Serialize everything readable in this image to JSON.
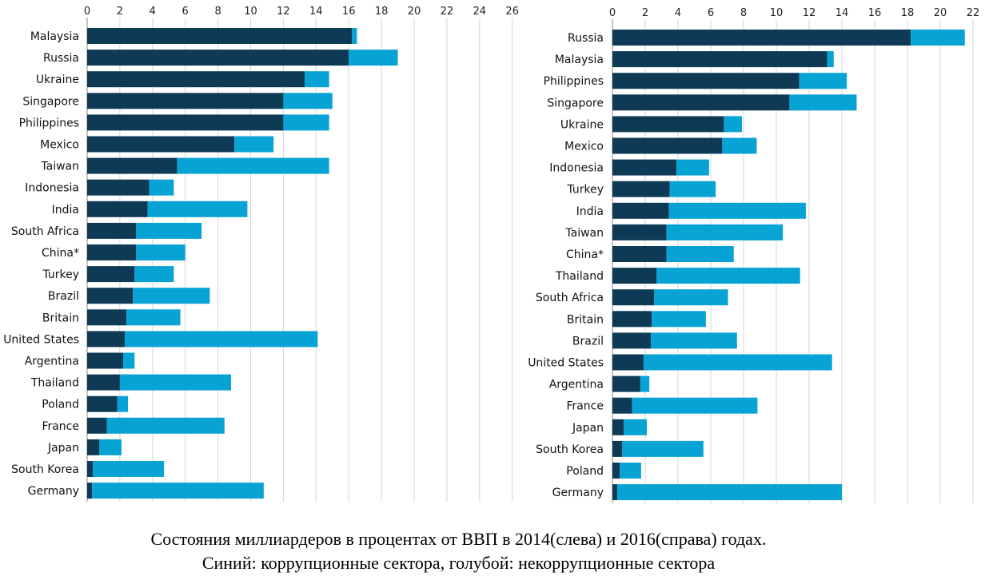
{
  "chart_data": [
    {
      "type": "bar",
      "orientation": "horizontal",
      "stacked": true,
      "title": "",
      "xlim": [
        0,
        26
      ],
      "xticks": [
        0,
        2,
        4,
        6,
        8,
        10,
        12,
        14,
        16,
        18,
        20,
        22,
        24,
        26
      ],
      "categories": [
        "Malaysia",
        "Russia",
        "Ukraine",
        "Singapore",
        "Philippines",
        "Mexico",
        "Taiwan",
        "Indonesia",
        "India",
        "South Africa",
        "China*",
        "Turkey",
        "Brazil",
        "Britain",
        "United States",
        "Argentina",
        "Thailand",
        "Poland",
        "France",
        "Japan",
        "South Korea",
        "Germany"
      ],
      "series": [
        {
          "values": [
            16.2,
            16.0,
            13.3,
            12.0,
            12.0,
            9.0,
            5.5,
            3.8,
            3.7,
            3.0,
            3.0,
            2.9,
            2.8,
            2.4,
            2.3,
            2.2,
            2.0,
            1.85,
            1.2,
            0.75,
            0.35,
            0.3
          ]
        },
        {
          "values": [
            0.3,
            3.0,
            1.5,
            3.0,
            2.8,
            2.4,
            9.3,
            1.5,
            6.1,
            4.0,
            3.0,
            2.4,
            4.7,
            3.3,
            11.8,
            0.7,
            6.8,
            0.65,
            7.2,
            1.35,
            4.35,
            10.5
          ]
        }
      ],
      "colors": [
        "#0f3a55",
        "#06a3d4"
      ]
    },
    {
      "type": "bar",
      "orientation": "horizontal",
      "stacked": true,
      "title": "",
      "xlim": [
        0,
        22
      ],
      "xticks": [
        0,
        2,
        4,
        6,
        8,
        10,
        12,
        14,
        16,
        18,
        20,
        22
      ],
      "categories": [
        "Russia",
        "Malaysia",
        "Philippines",
        "Singapore",
        "Ukraine",
        "Mexico",
        "Indonesia",
        "Turkey",
        "India",
        "Taiwan",
        "China*",
        "Thailand",
        "South Africa",
        "Britain",
        "Brazil",
        "United States",
        "Argentina",
        "France",
        "Japan",
        "South Korea",
        "Poland",
        "Germany"
      ],
      "series": [
        {
          "values": [
            18.2,
            13.1,
            11.4,
            10.8,
            6.8,
            6.7,
            3.9,
            3.5,
            3.45,
            3.3,
            3.3,
            2.7,
            2.55,
            2.4,
            2.35,
            1.9,
            1.7,
            1.2,
            0.7,
            0.6,
            0.45,
            0.3
          ]
        },
        {
          "values": [
            3.3,
            0.4,
            2.9,
            4.1,
            1.1,
            2.1,
            2.0,
            2.8,
            8.35,
            7.1,
            4.1,
            8.75,
            4.5,
            3.3,
            5.25,
            11.5,
            0.55,
            7.65,
            1.4,
            4.95,
            1.3,
            13.7
          ]
        }
      ],
      "colors": [
        "#0f3a55",
        "#06a3d4"
      ]
    }
  ],
  "caption": {
    "line1": "Состояния миллиардеров в процентах от ВВП в 2014(слева) и 2016(справа) годах.",
    "line2": "Синий: коррупционные сектора, голубой: некоррупционные сектора"
  }
}
